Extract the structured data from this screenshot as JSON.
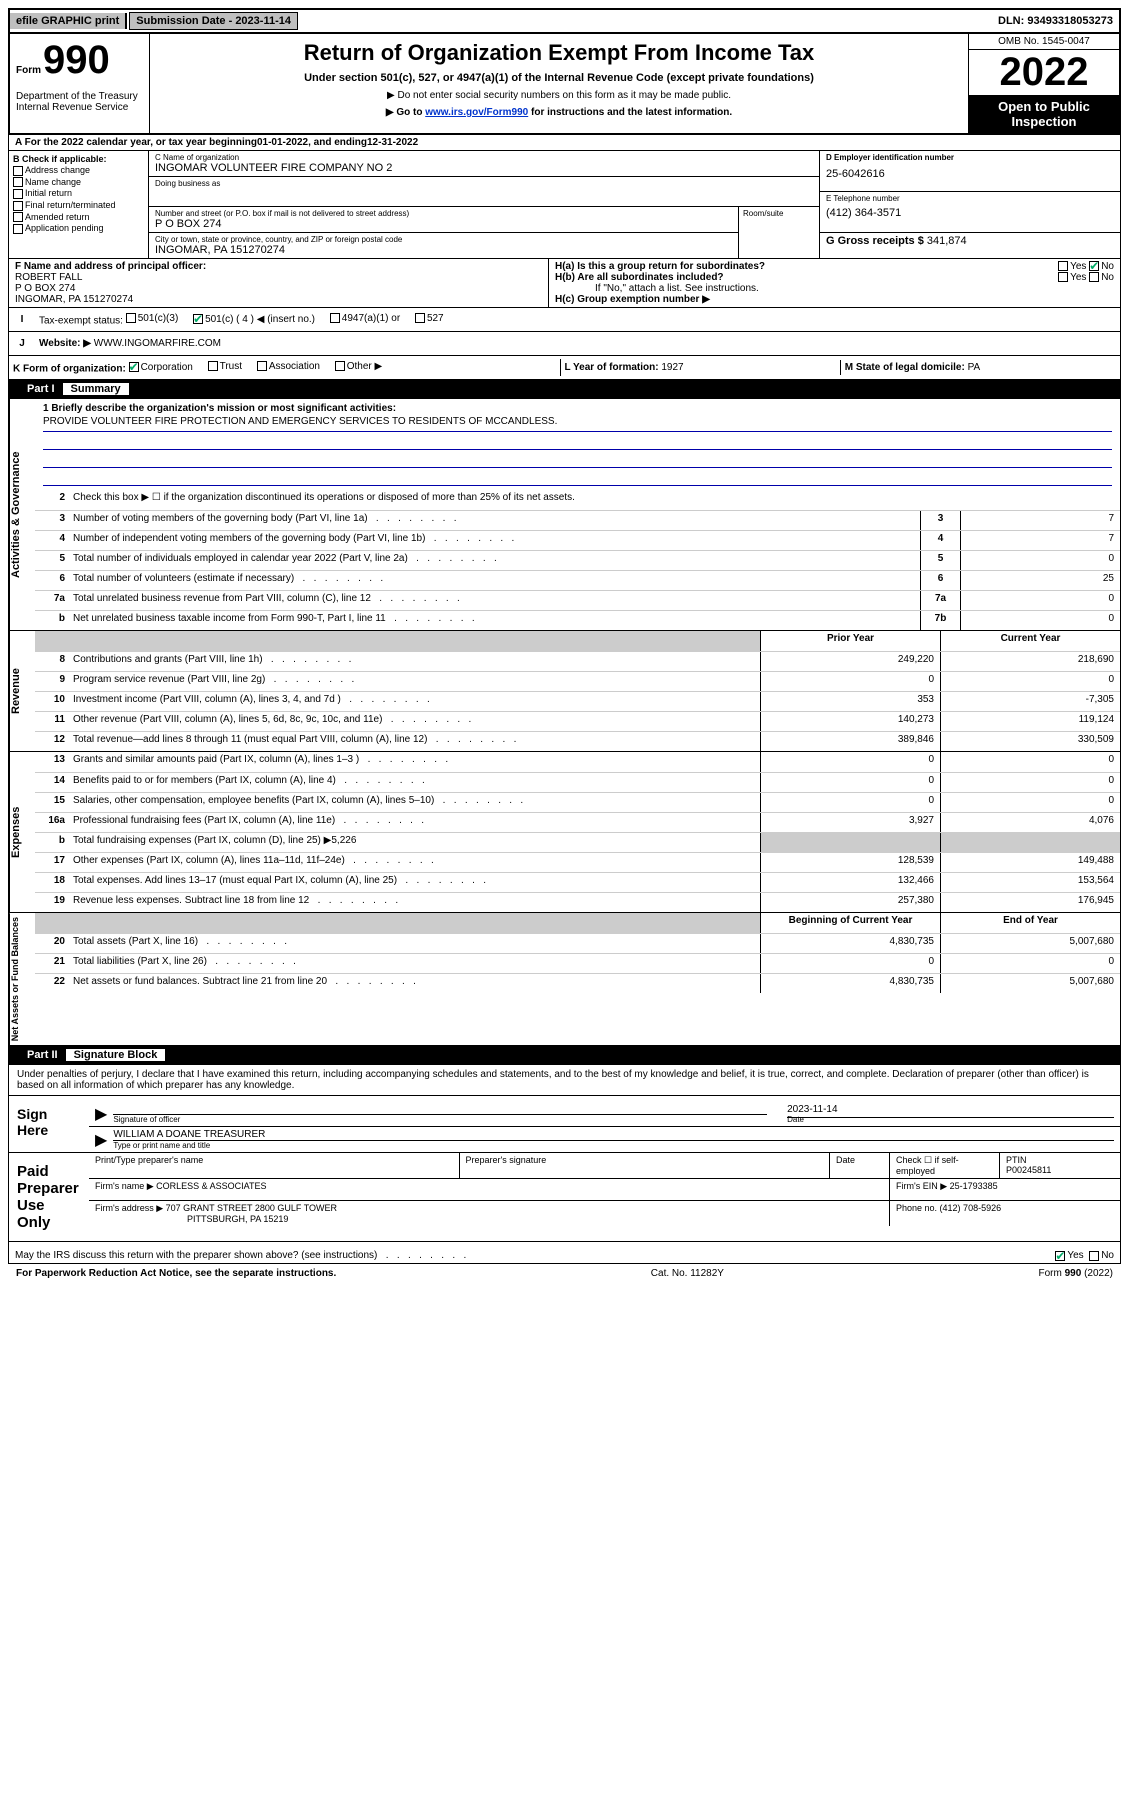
{
  "topbar": {
    "efile": "efile GRAPHIC print",
    "submission_label": "Submission Date - 2023-11-14",
    "dln": "DLN: 93493318053273"
  },
  "header": {
    "form_prefix": "Form",
    "form_num": "990",
    "dept": "Department of the Treasury Internal Revenue Service",
    "title": "Return of Organization Exempt From Income Tax",
    "subtitle": "Under section 501(c), 527, or 4947(a)(1) of the Internal Revenue Code (except private foundations)",
    "note1": "▶ Do not enter social security numbers on this form as it may be made public.",
    "note2_pre": "▶ Go to ",
    "note2_link": "www.irs.gov/Form990",
    "note2_post": " for instructions and the latest information.",
    "omb": "OMB No. 1545-0047",
    "year": "2022",
    "open": "Open to Public Inspection"
  },
  "period": {
    "a_label": "A For the 2022 calendar year, or tax year beginning ",
    "begin": "01-01-2022",
    "mid": "   , and ending ",
    "end": "12-31-2022"
  },
  "blockB": {
    "header": "B Check if applicable:",
    "items": [
      "Address change",
      "Name change",
      "Initial return",
      "Final return/terminated",
      "Amended return",
      "Application pending"
    ]
  },
  "blockC": {
    "name_label": "C Name of organization",
    "name": "INGOMAR VOLUNTEER FIRE COMPANY NO 2",
    "dba_label": "Doing business as",
    "addr_label": "Number and street (or P.O. box if mail is not delivered to street address)",
    "addr": "P O BOX 274",
    "room_label": "Room/suite",
    "city_label": "City or town, state or province, country, and ZIP or foreign postal code",
    "city": "INGOMAR, PA  151270274"
  },
  "blockD": {
    "ein_label": "D Employer identification number",
    "ein": "25-6042616",
    "tel_label": "E Telephone number",
    "tel": "(412) 364-3571",
    "gross_label": "G Gross receipts $ ",
    "gross": "341,874"
  },
  "lineF": {
    "label": "F  Name and address of principal officer:",
    "name": "ROBERT FALL",
    "addr1": "P O BOX 274",
    "addr2": "INGOMAR, PA  151270274"
  },
  "lineH": {
    "ha": "H(a)  Is this a group return for subordinates?",
    "hb": "H(b)  Are all subordinates included?",
    "hb_note": "If \"No,\" attach a list. See instructions.",
    "hc": "H(c)  Group exemption number ▶"
  },
  "lineI": {
    "label": "Tax-exempt status:",
    "opts": [
      "501(c)(3)",
      "501(c) ( 4 ) ◀ (insert no.)",
      "4947(a)(1) or",
      "527"
    ]
  },
  "lineJ": {
    "label": "Website: ▶ ",
    "val": "WWW.INGOMARFIRE.COM"
  },
  "lineK": {
    "label": "K Form of organization:",
    "opts": [
      "Corporation",
      "Trust",
      "Association",
      "Other ▶"
    ]
  },
  "lineL": {
    "label": "L Year of formation: ",
    "val": "1927"
  },
  "lineM": {
    "label": "M State of legal domicile: ",
    "val": "PA"
  },
  "part1": {
    "hdr": "Part I",
    "title": "Summary"
  },
  "mission": {
    "q1": "1  Briefly describe the organization's mission or most significant activities:",
    "text": "PROVIDE VOLUNTEER FIRE PROTECTION AND EMERGENCY SERVICES TO RESIDENTS OF MCCANDLESS."
  },
  "gov_lines": [
    {
      "n": "2",
      "d": "Check this box ▶ ☐  if the organization discontinued its operations or disposed of more than 25% of its net assets."
    },
    {
      "n": "3",
      "d": "Number of voting members of the governing body (Part VI, line 1a)",
      "box": "3",
      "v": "7"
    },
    {
      "n": "4",
      "d": "Number of independent voting members of the governing body (Part VI, line 1b)",
      "box": "4",
      "v": "7"
    },
    {
      "n": "5",
      "d": "Total number of individuals employed in calendar year 2022 (Part V, line 2a)",
      "box": "5",
      "v": "0"
    },
    {
      "n": "6",
      "d": "Total number of volunteers (estimate if necessary)",
      "box": "6",
      "v": "25"
    },
    {
      "n": "7a",
      "d": "Total unrelated business revenue from Part VIII, column (C), line 12",
      "box": "7a",
      "v": "0"
    },
    {
      "n": "b",
      "d": "Net unrelated business taxable income from Form 990-T, Part I, line 11",
      "box": "7b",
      "v": "0"
    }
  ],
  "rev_hdr": {
    "prior": "Prior Year",
    "curr": "Current Year"
  },
  "rev_lines": [
    {
      "n": "8",
      "d": "Contributions and grants (Part VIII, line 1h)",
      "p": "249,220",
      "c": "218,690"
    },
    {
      "n": "9",
      "d": "Program service revenue (Part VIII, line 2g)",
      "p": "0",
      "c": "0"
    },
    {
      "n": "10",
      "d": "Investment income (Part VIII, column (A), lines 3, 4, and 7d )",
      "p": "353",
      "c": "-7,305"
    },
    {
      "n": "11",
      "d": "Other revenue (Part VIII, column (A), lines 5, 6d, 8c, 9c, 10c, and 11e)",
      "p": "140,273",
      "c": "119,124"
    },
    {
      "n": "12",
      "d": "Total revenue—add lines 8 through 11 (must equal Part VIII, column (A), line 12)",
      "p": "389,846",
      "c": "330,509"
    }
  ],
  "exp_lines": [
    {
      "n": "13",
      "d": "Grants and similar amounts paid (Part IX, column (A), lines 1–3 )",
      "p": "0",
      "c": "0"
    },
    {
      "n": "14",
      "d": "Benefits paid to or for members (Part IX, column (A), line 4)",
      "p": "0",
      "c": "0"
    },
    {
      "n": "15",
      "d": "Salaries, other compensation, employee benefits (Part IX, column (A), lines 5–10)",
      "p": "0",
      "c": "0"
    },
    {
      "n": "16a",
      "d": "Professional fundraising fees (Part IX, column (A), line 11e)",
      "p": "3,927",
      "c": "4,076"
    },
    {
      "n": "b",
      "d": "Total fundraising expenses (Part IX, column (D), line 25) ▶5,226",
      "shade": true
    },
    {
      "n": "17",
      "d": "Other expenses (Part IX, column (A), lines 11a–11d, 11f–24e)",
      "p": "128,539",
      "c": "149,488"
    },
    {
      "n": "18",
      "d": "Total expenses. Add lines 13–17 (must equal Part IX, column (A), line 25)",
      "p": "132,466",
      "c": "153,564"
    },
    {
      "n": "19",
      "d": "Revenue less expenses. Subtract line 18 from line 12",
      "p": "257,380",
      "c": "176,945"
    }
  ],
  "na_hdr": {
    "begin": "Beginning of Current Year",
    "end": "End of Year"
  },
  "na_lines": [
    {
      "n": "20",
      "d": "Total assets (Part X, line 16)",
      "p": "4,830,735",
      "c": "5,007,680"
    },
    {
      "n": "21",
      "d": "Total liabilities (Part X, line 26)",
      "p": "0",
      "c": "0"
    },
    {
      "n": "22",
      "d": "Net assets or fund balances. Subtract line 21 from line 20",
      "p": "4,830,735",
      "c": "5,007,680"
    }
  ],
  "part2": {
    "hdr": "Part II",
    "title": "Signature Block"
  },
  "sig": {
    "intro": "Under penalties of perjury, I declare that I have examined this return, including accompanying schedules and statements, and to the best of my knowledge and belief, it is true, correct, and complete. Declaration of preparer (other than officer) is based on all information of which preparer has any knowledge.",
    "here": "Sign Here",
    "date": "2023-11-14",
    "sig_label": "Signature of officer",
    "date_label": "Date",
    "officer": "WILLIAM A DOANE  TREASURER",
    "name_label": "Type or print name and title"
  },
  "prep": {
    "title": "Paid Preparer Use Only",
    "h1": "Print/Type preparer's name",
    "h2": "Preparer's signature",
    "h3": "Date",
    "h4_check": "Check ☐ if self-employed",
    "h5": "PTIN",
    "ptin": "P00245811",
    "firm_label": "Firm's name    ▶ ",
    "firm": "CORLESS & ASSOCIATES",
    "ein_label": "Firm's EIN ▶ ",
    "ein": "25-1793385",
    "addr_label": "Firm's address ▶ ",
    "addr1": "707 GRANT STREET 2800 GULF TOWER",
    "addr2": "PITTSBURGH, PA  15219",
    "phone_label": "Phone no. ",
    "phone": "(412) 708-5926"
  },
  "discuss": {
    "q": "May the IRS discuss this return with the preparer shown above? (see instructions)",
    "yes": "Yes",
    "no": "No"
  },
  "footer": {
    "left": "For Paperwork Reduction Act Notice, see the separate instructions.",
    "mid": "Cat. No. 11282Y",
    "right": "Form 990 (2022)"
  }
}
